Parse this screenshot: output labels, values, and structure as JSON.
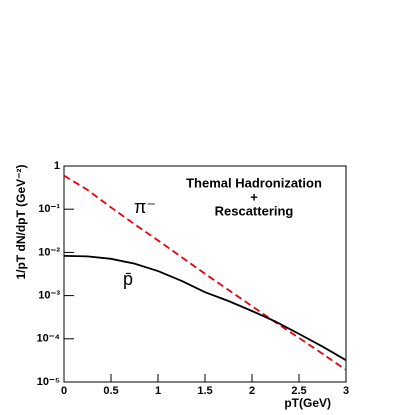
{
  "chart_data": {
    "type": "line",
    "x_label": "pT(GeV)",
    "y_label": "1/pT dN/dpT (GeV⁻²)",
    "annotation": [
      "Themal Hadronization",
      "+",
      "Rescattering"
    ],
    "log_y": true,
    "xlim": [
      0,
      3
    ],
    "ylim": [
      1e-05,
      1
    ],
    "xticks": [
      0,
      0.5,
      1,
      1.5,
      2,
      2.5,
      3
    ],
    "yticks": [
      {
        "value": 1e-05,
        "label": "10⁻⁵"
      },
      {
        "value": 0.0001,
        "label": "10⁻⁴"
      },
      {
        "value": 0.001,
        "label": "10⁻³"
      },
      {
        "value": 0.01,
        "label": "10⁻²"
      },
      {
        "value": 0.1,
        "label": "10⁻¹"
      },
      1
    ],
    "x": [
      0,
      0.25,
      0.5,
      0.75,
      1,
      1.25,
      1.5,
      1.75,
      2,
      2.25,
      2.5,
      2.75,
      3
    ],
    "series": [
      {
        "name": "π⁻",
        "color": "#e8000b",
        "line_style": "dashed",
        "values": [
          0.6,
          0.28,
          0.11,
          0.045,
          0.019,
          0.0078,
          0.0032,
          0.00135,
          0.00057,
          0.00024,
          0.000105,
          4.5e-05,
          1.9e-05
        ]
      },
      {
        "name": "p̄",
        "color": "#000000",
        "line_style": "solid",
        "values": [
          0.0083,
          0.0081,
          0.0071,
          0.0055,
          0.0037,
          0.0022,
          0.0012,
          0.00075,
          0.00044,
          0.00025,
          0.00013,
          6.6e-05,
          3.2e-05
        ]
      }
    ]
  }
}
